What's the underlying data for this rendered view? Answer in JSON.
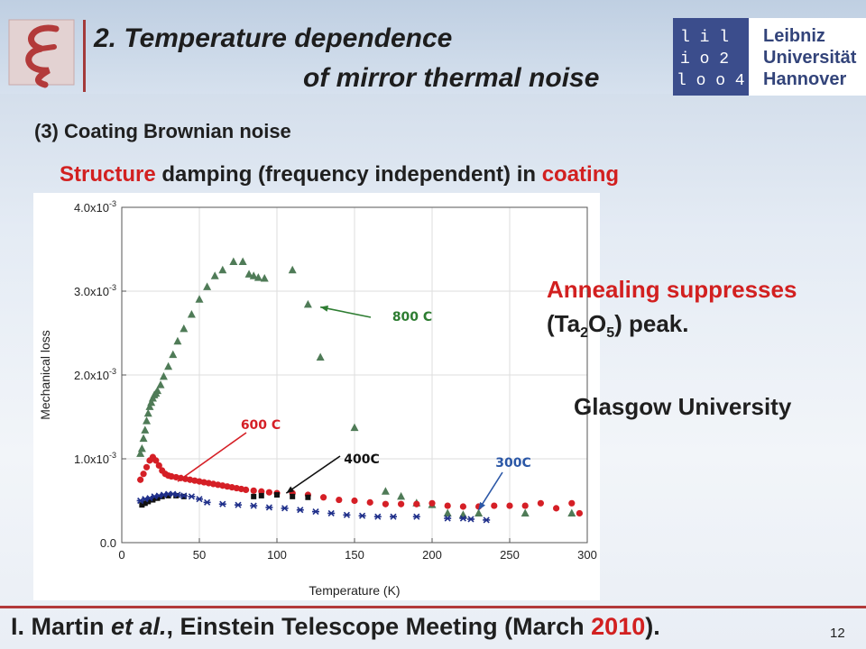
{
  "header": {
    "title_line1": "2. Temperature dependence",
    "title_line2": "of mirror thermal noise",
    "university_name": "Leibniz\nUniversität\nHannover",
    "university_mark_rows": [
      "l i l",
      "i o 2",
      "l o o 4"
    ]
  },
  "subheading": "(3) Coating Brownian noise",
  "structure_line": {
    "part1": "Structure",
    "part2": " damping (frequency independent) in ",
    "part3": "coating"
  },
  "annotations": {
    "annealing_line1": "Annealing suppresses",
    "annealing_line2_prefix": "(Ta",
    "annealing_sub1": "2",
    "annealing_mid": "O",
    "annealing_sub2": "5",
    "annealing_suffix": ") peak.",
    "source": "Glasgow University"
  },
  "footer": {
    "citation_prefix": "I. Martin ",
    "citation_italic": "et al.",
    "citation_mid": ", Einstein Telescope Meeting (March ",
    "citation_year": "2010",
    "citation_suffix": ").",
    "page_number": "12"
  },
  "colors": {
    "series_800": "#4f7b57",
    "series_600": "#d51f26",
    "series_400": "#111111",
    "series_300": "#1f2f8a",
    "accent_red": "#d22020"
  },
  "chart_data": {
    "type": "scatter",
    "xlabel": "Temperature (K)",
    "ylabel": "Mechanical loss",
    "xlim": [
      0,
      300
    ],
    "ylim": [
      0,
      0.004
    ],
    "x_ticks": [
      "0",
      "50",
      "100",
      "150",
      "200",
      "250",
      "300"
    ],
    "y_ticks": [
      "0.0",
      "1.0x10",
      "2.0x10",
      "3.0x10",
      "4.0x10"
    ],
    "y_tick_exponent": "-3",
    "grid": true,
    "series": [
      {
        "name": "800 C",
        "marker": "triangle",
        "points": [
          [
            12,
            0.00106
          ],
          [
            13,
            0.00112
          ],
          [
            14,
            0.00124
          ],
          [
            15,
            0.00134
          ],
          [
            16,
            0.00145
          ],
          [
            17,
            0.00154
          ],
          [
            18,
            0.00162
          ],
          [
            19,
            0.00167
          ],
          [
            20,
            0.00172
          ],
          [
            21,
            0.00176
          ],
          [
            22,
            0.00178
          ],
          [
            23,
            0.00181
          ],
          [
            25,
            0.00188
          ],
          [
            27,
            0.00198
          ],
          [
            30,
            0.0021
          ],
          [
            33,
            0.00224
          ],
          [
            36,
            0.0024
          ],
          [
            40,
            0.00255
          ],
          [
            45,
            0.00272
          ],
          [
            50,
            0.0029
          ],
          [
            55,
            0.00305
          ],
          [
            60,
            0.00318
          ],
          [
            65,
            0.00325
          ],
          [
            72,
            0.00335
          ],
          [
            78,
            0.00335
          ],
          [
            82,
            0.0032
          ],
          [
            85,
            0.00318
          ],
          [
            88,
            0.00316
          ],
          [
            92,
            0.00315
          ],
          [
            110,
            0.00325
          ],
          [
            120,
            0.00284
          ],
          [
            128,
            0.00221
          ],
          [
            150,
            0.00137
          ],
          [
            170,
            0.00061
          ],
          [
            180,
            0.00055
          ],
          [
            190,
            0.00047
          ],
          [
            200,
            0.00045
          ],
          [
            210,
            0.00035
          ],
          [
            220,
            0.00033
          ],
          [
            230,
            0.00035
          ],
          [
            260,
            0.00035
          ],
          [
            290,
            0.00035
          ]
        ]
      },
      {
        "name": "600 C",
        "marker": "circle",
        "points": [
          [
            12,
            0.00075
          ],
          [
            14,
            0.00082
          ],
          [
            16,
            0.0009
          ],
          [
            18,
            0.00098
          ],
          [
            20,
            0.00102
          ],
          [
            22,
            0.00098
          ],
          [
            24,
            0.00092
          ],
          [
            26,
            0.00086
          ],
          [
            28,
            0.00082
          ],
          [
            30,
            0.0008
          ],
          [
            32,
            0.00079
          ],
          [
            35,
            0.00078
          ],
          [
            38,
            0.00077
          ],
          [
            41,
            0.00076
          ],
          [
            44,
            0.00075
          ],
          [
            47,
            0.00074
          ],
          [
            50,
            0.00073
          ],
          [
            53,
            0.00072
          ],
          [
            56,
            0.00071
          ],
          [
            59,
            0.0007
          ],
          [
            62,
            0.00069
          ],
          [
            65,
            0.00068
          ],
          [
            68,
            0.00067
          ],
          [
            71,
            0.00066
          ],
          [
            74,
            0.00065
          ],
          [
            77,
            0.00064
          ],
          [
            80,
            0.00063
          ],
          [
            85,
            0.00062
          ],
          [
            90,
            0.00061
          ],
          [
            95,
            0.0006
          ],
          [
            100,
            0.00059
          ],
          [
            110,
            0.00059
          ],
          [
            120,
            0.00057
          ],
          [
            130,
            0.00054
          ],
          [
            140,
            0.00051
          ],
          [
            150,
            0.0005
          ],
          [
            160,
            0.00048
          ],
          [
            170,
            0.00046
          ],
          [
            180,
            0.00046
          ],
          [
            190,
            0.00046
          ],
          [
            200,
            0.00047
          ],
          [
            210,
            0.00044
          ],
          [
            220,
            0.00043
          ],
          [
            230,
            0.00043
          ],
          [
            240,
            0.00044
          ],
          [
            250,
            0.00044
          ],
          [
            260,
            0.00044
          ],
          [
            270,
            0.00047
          ],
          [
            280,
            0.00041
          ],
          [
            290,
            0.00047
          ],
          [
            295,
            0.00035
          ]
        ]
      },
      {
        "name": "400C",
        "marker": "square",
        "points": [
          [
            13,
            0.00045
          ],
          [
            15,
            0.00047
          ],
          [
            17,
            0.00049
          ],
          [
            20,
            0.00051
          ],
          [
            23,
            0.00053
          ],
          [
            26,
            0.00055
          ],
          [
            30,
            0.00056
          ],
          [
            35,
            0.00056
          ],
          [
            40,
            0.00055
          ],
          [
            85,
            0.00055
          ],
          [
            90,
            0.00056
          ],
          [
            100,
            0.00057
          ],
          [
            110,
            0.00055
          ],
          [
            120,
            0.00054
          ]
        ]
      },
      {
        "name": "300C",
        "marker": "star",
        "points": [
          [
            12,
            0.0005
          ],
          [
            15,
            0.00052
          ],
          [
            18,
            0.00053
          ],
          [
            21,
            0.00055
          ],
          [
            24,
            0.00056
          ],
          [
            27,
            0.00057
          ],
          [
            30,
            0.00058
          ],
          [
            33,
            0.00058
          ],
          [
            36,
            0.00057
          ],
          [
            40,
            0.00056
          ],
          [
            45,
            0.00055
          ],
          [
            50,
            0.00052
          ],
          [
            55,
            0.00048
          ],
          [
            65,
            0.00046
          ],
          [
            75,
            0.00045
          ],
          [
            85,
            0.00044
          ],
          [
            95,
            0.00042
          ],
          [
            105,
            0.00041
          ],
          [
            115,
            0.00039
          ],
          [
            125,
            0.00037
          ],
          [
            135,
            0.00035
          ],
          [
            145,
            0.00033
          ],
          [
            155,
            0.00032
          ],
          [
            165,
            0.00031
          ],
          [
            175,
            0.00031
          ],
          [
            190,
            0.00031
          ],
          [
            210,
            0.00029
          ],
          [
            220,
            0.00029
          ],
          [
            225,
            0.00028
          ],
          [
            235,
            0.00027
          ]
        ]
      }
    ],
    "annotations": [
      {
        "text": "800 C",
        "color": "#2e7d32",
        "arrow_to": [
          128,
          0.00281
        ]
      },
      {
        "text": "600 C",
        "color": "#d51f26",
        "arrow_to": [
          36,
          0.00073
        ]
      },
      {
        "text": "400C",
        "color": "#111111",
        "arrow_to": [
          106,
          0.00059
        ]
      },
      {
        "text": "300C",
        "color": "#2b57a6",
        "arrow_to": [
          230,
          0.00039
        ]
      }
    ]
  }
}
